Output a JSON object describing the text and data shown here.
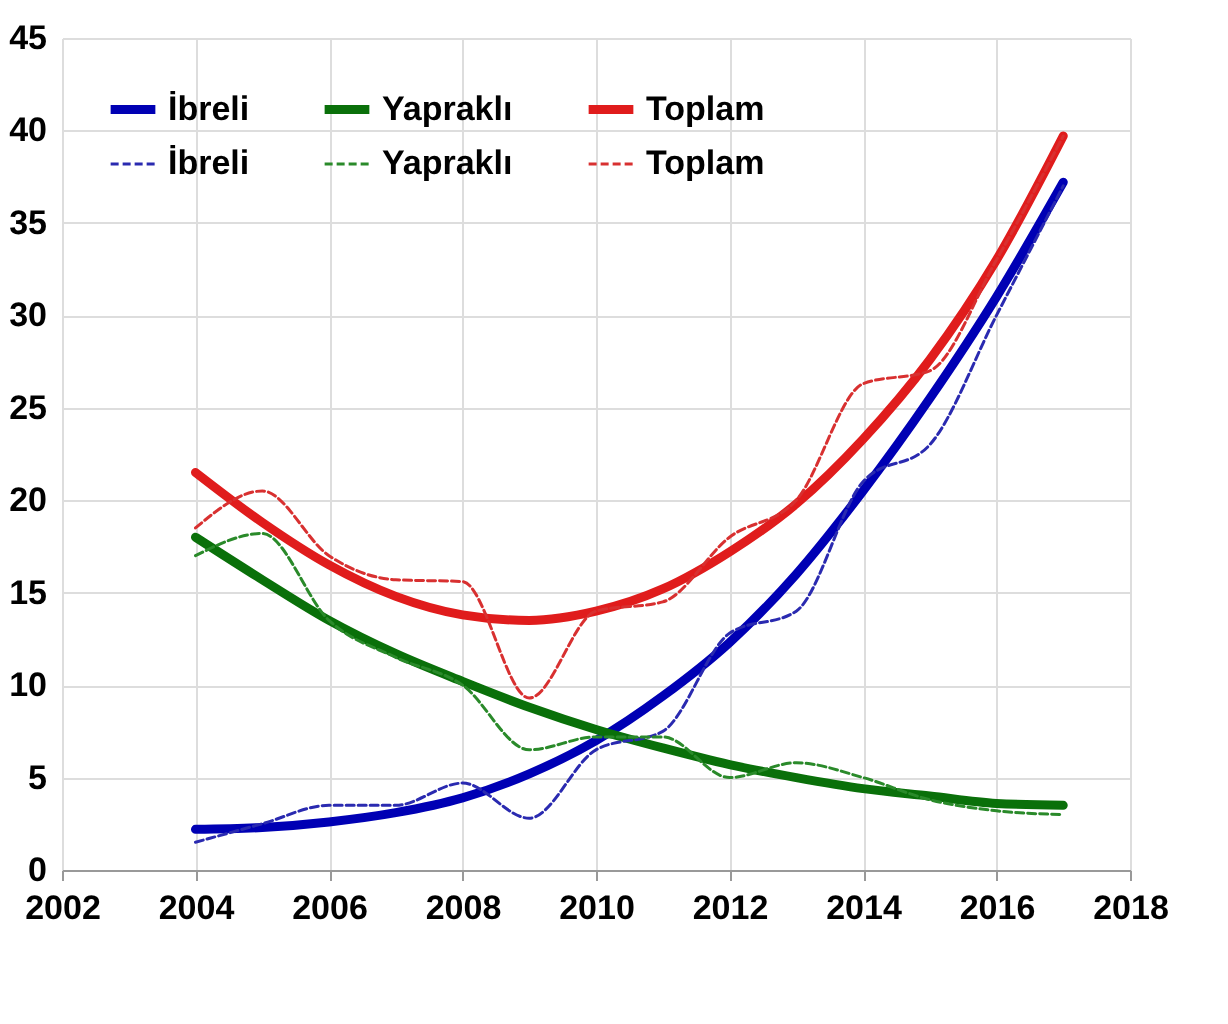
{
  "chart_data": {
    "type": "line",
    "x": [
      2004,
      2005,
      2006,
      2007,
      2008,
      2009,
      2010,
      2011,
      2012,
      2013,
      2014,
      2015,
      2016,
      2017
    ],
    "series": [
      {
        "name": "İbreli",
        "color": "#0000b4",
        "line_style": "solid",
        "values": [
          2.2,
          2.3,
          2.6,
          3.1,
          3.9,
          5.2,
          7,
          9.4,
          12.3,
          16,
          20.5,
          25.5,
          31,
          37.2
        ]
      },
      {
        "name": "Yapraklı",
        "color": "#0a700a",
        "line_style": "solid",
        "values": [
          18,
          15.7,
          13.5,
          11.7,
          10.2,
          8.8,
          7.6,
          6.6,
          5.7,
          5,
          4.4,
          4,
          3.6,
          3.5
        ]
      },
      {
        "name": "Toplam",
        "color": "#e01c1c",
        "line_style": "solid",
        "values": [
          21.5,
          18.8,
          16.5,
          14.8,
          13.8,
          13.5,
          14,
          15.2,
          17.2,
          19.8,
          23.3,
          27.6,
          33,
          39.7
        ]
      },
      {
        "name": "İbreli",
        "color": "#2a2ab0",
        "line_style": "dashed",
        "values": [
          1.5,
          2.5,
          3.5,
          3.5,
          4.7,
          2.8,
          6.5,
          7.5,
          12.8,
          14,
          21,
          23,
          30,
          37
        ]
      },
      {
        "name": "Yapraklı",
        "color": "#2a8a2a",
        "line_style": "dashed",
        "values": [
          17,
          18.2,
          13.5,
          11.5,
          10,
          6.5,
          7.2,
          7.2,
          5,
          5.8,
          5,
          3.8,
          3.2,
          3
        ]
      },
      {
        "name": "Toplam",
        "color": "#d83030",
        "line_style": "dashed",
        "values": [
          18.5,
          20.5,
          17,
          15.7,
          15.6,
          9.3,
          14,
          14.5,
          18,
          20,
          26.3,
          27,
          33,
          39.7
        ]
      }
    ],
    "xlim": [
      2002,
      2018
    ],
    "xticks": [
      2002,
      2004,
      2006,
      2008,
      2010,
      2012,
      2014,
      2016,
      2018
    ],
    "ylim": [
      0,
      45
    ],
    "yticks": [
      0,
      5,
      10,
      15,
      20,
      25,
      30,
      35,
      40,
      45
    ],
    "grid": true,
    "legend": "top left",
    "marker": "none"
  }
}
